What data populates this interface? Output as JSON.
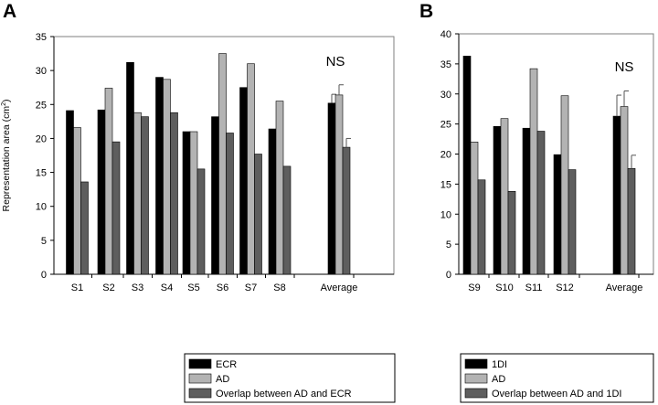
{
  "chart_data": [
    {
      "type": "bar",
      "panel_label": "A",
      "ylabel": "Representation area (cm",
      "ylabel_superscript": "2",
      "ylabel_close": ")",
      "ylim": [
        0,
        35
      ],
      "yticks": [
        "0",
        "5",
        "10",
        "15",
        "20",
        "25",
        "30",
        "35"
      ],
      "categories": [
        "S1",
        "S2",
        "S3",
        "S4",
        "S5",
        "S6",
        "S7",
        "S8",
        "Average"
      ],
      "series": [
        {
          "name": "ECR",
          "color": "#000000",
          "values": [
            24.1,
            24.2,
            31.2,
            29.0,
            21.0,
            23.2,
            27.5,
            21.4,
            25.2
          ],
          "errors": [
            null,
            null,
            null,
            null,
            null,
            null,
            null,
            null,
            1.3
          ]
        },
        {
          "name": "AD",
          "color": "#b3b3b3",
          "values": [
            21.6,
            27.4,
            23.8,
            28.7,
            21.0,
            32.5,
            31.0,
            25.5,
            26.4
          ],
          "errors": [
            null,
            null,
            null,
            null,
            null,
            null,
            null,
            null,
            1.5
          ]
        },
        {
          "name": "Overlap between AD and ECR",
          "color": "#5e5e5e",
          "values": [
            13.6,
            19.5,
            23.2,
            23.8,
            15.5,
            20.8,
            17.7,
            15.9,
            18.7
          ],
          "errors": [
            null,
            null,
            null,
            null,
            null,
            null,
            null,
            null,
            1.3
          ]
        }
      ],
      "annotation": "NS",
      "grid": false,
      "legend": "bottom"
    },
    {
      "type": "bar",
      "panel_label": "B",
      "ylim": [
        0,
        40
      ],
      "yticks": [
        "0",
        "5",
        "10",
        "15",
        "20",
        "25",
        "30",
        "35",
        "40"
      ],
      "categories": [
        "S9",
        "S10",
        "S11",
        "S12",
        "Average"
      ],
      "series": [
        {
          "name": "1DI",
          "color": "#000000",
          "values": [
            36.3,
            24.6,
            24.3,
            19.9,
            26.3
          ],
          "errors": [
            null,
            null,
            null,
            null,
            3.5
          ]
        },
        {
          "name": "AD",
          "color": "#b3b3b3",
          "values": [
            22.0,
            25.9,
            34.2,
            29.7,
            27.9
          ],
          "errors": [
            null,
            null,
            null,
            null,
            2.6
          ]
        },
        {
          "name": "Overlap between AD and 1DI",
          "color": "#5e5e5e",
          "values": [
            15.7,
            13.8,
            23.8,
            17.4,
            17.6
          ],
          "errors": [
            null,
            null,
            null,
            null,
            2.2
          ]
        }
      ],
      "annotation": "NS",
      "grid": false,
      "legend": "bottom"
    }
  ]
}
